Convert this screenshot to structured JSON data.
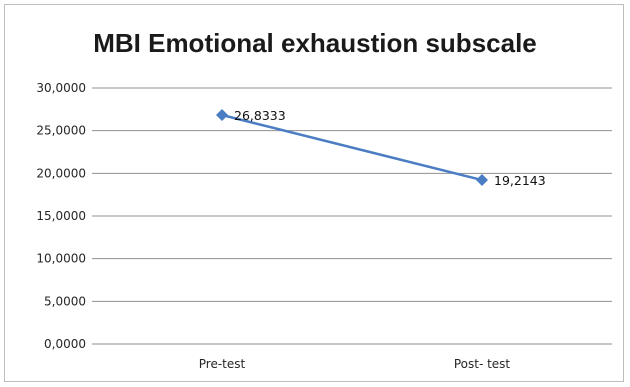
{
  "chart_data": {
    "type": "line",
    "title": "MBI Emotional exhaustion subscale",
    "categories": [
      "Pre-test",
      "Post- test"
    ],
    "series": [
      {
        "values": [
          26.8333,
          19.2143
        ],
        "data_labels": [
          "26,8333",
          "19,2143"
        ],
        "color": "#4a7dc4",
        "marker": "diamond"
      }
    ],
    "ylim": [
      0,
      30
    ],
    "yticks": [
      0,
      5,
      10,
      15,
      20,
      25,
      30
    ],
    "ytick_labels": [
      "0,0000",
      "5,0000",
      "10,0000",
      "15,0000",
      "20,0000",
      "25,0000",
      "30,0000"
    ],
    "grid": true,
    "legend": "none"
  }
}
